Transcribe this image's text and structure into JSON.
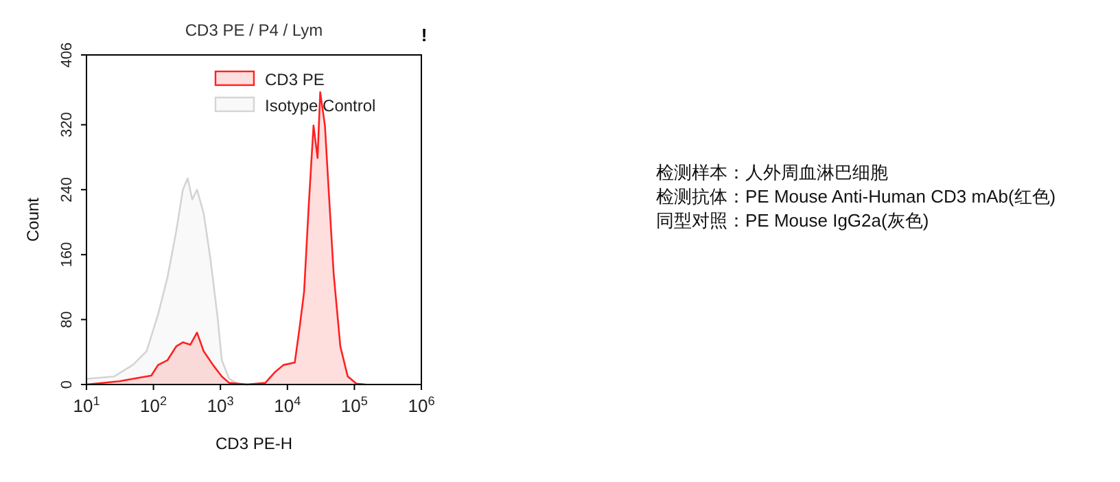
{
  "chart_data": {
    "type": "area",
    "title": "CD3 PE / P4 / Lym",
    "xlabel": "CD3 PE-H",
    "ylabel": "Count",
    "log": "x",
    "grid": false,
    "legend": "top",
    "xlim": [
      10,
      1000000
    ],
    "xticks": [
      {
        "value": 10,
        "label": "10$^{1}$"
      },
      {
        "value": 100,
        "label": "10$^{2}$"
      },
      {
        "value": 1000,
        "label": "10$^{3}$"
      },
      {
        "value": 10000,
        "label": "10$^{4}$"
      },
      {
        "value": 100000,
        "label": "10$^{5}$"
      },
      {
        "value": 1000000,
        "label": "10$^{6}$"
      }
    ],
    "ylim": [
      0,
      406
    ],
    "yticks": [
      0,
      80,
      160,
      240,
      320,
      406
    ],
    "series": [
      {
        "name": "CD3 PE",
        "color": "#ff2020",
        "x": [
          10,
          31,
          58,
          93,
          117,
          162,
          219,
          275,
          355,
          447,
          562,
          776,
          1047,
          1349,
          2512,
          4677,
          6457,
          8710,
          12880,
          15140,
          17780,
          20890,
          24550,
          28180,
          30900,
          36310,
          41690,
          48980,
          61660,
          79430,
          107200,
          147900
        ],
        "values": [
          0,
          4,
          8,
          11,
          24,
          30,
          47,
          52,
          49,
          64,
          41,
          24,
          10,
          2,
          0,
          2,
          15,
          24,
          27,
          69,
          115,
          223,
          319,
          279,
          360,
          319,
          234,
          137,
          47,
          10,
          1,
          0
        ]
      },
      {
        "name": "Isotype Control",
        "color": "#d4d4d4",
        "x": [
          10,
          26,
          49,
          79,
          117,
          162,
          219,
          275,
          324,
          380,
          447,
          562,
          708,
          912,
          1047,
          1349,
          1820,
          2951
        ],
        "values": [
          7,
          10,
          24,
          41,
          86,
          132,
          189,
          240,
          254,
          228,
          240,
          211,
          155,
          81,
          30,
          7,
          1,
          0
        ]
      }
    ],
    "annotations": [
      "!",
      "检测样本：人外周血淋巴细胞",
      "检测抗体：PE Mouse Anti-Human CD3 mAb(红色)",
      "同型对照：PE Mouse IgG2a(灰色)"
    ]
  }
}
